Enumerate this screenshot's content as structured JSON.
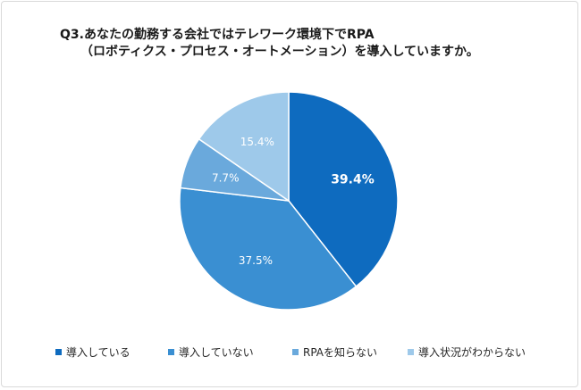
{
  "chart_data": {
    "type": "pie",
    "title_line1": "Q3.あなたの勤務する会社ではテレワーク環境下でRPA",
    "title_line2": "（ロボティクス・プロセス・オートメーション）を導入していますか。",
    "legend_position": "bottom",
    "slices": [
      {
        "label": "導入している",
        "value": 39.4,
        "value_label": "39.4%",
        "color": "#0e6bbf",
        "label_color": "#ffffff",
        "bold": true
      },
      {
        "label": "導入していない",
        "value": 37.5,
        "value_label": "37.5%",
        "color": "#3a8fd2",
        "label_color": "#ffffff",
        "bold": false
      },
      {
        "label": "RPAを知らない",
        "value": 7.7,
        "value_label": "7.7%",
        "color": "#6aa9dc",
        "label_color": "#ffffff",
        "bold": false
      },
      {
        "label": "導入状況がわからない",
        "value": 15.4,
        "value_label": "15.4%",
        "color": "#9ec9ea",
        "label_color": "#ffffff",
        "bold": false
      }
    ]
  }
}
